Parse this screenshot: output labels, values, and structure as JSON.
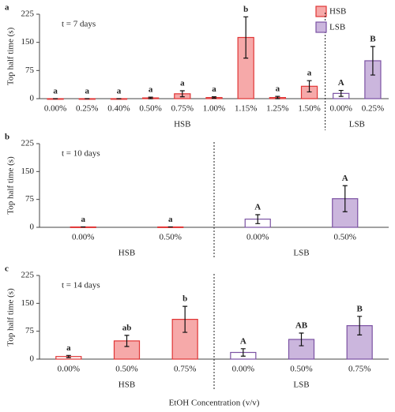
{
  "chart_data": [
    {
      "type": "bar",
      "panel_label": "a",
      "annotation": "t = 7 days",
      "ylabel": "Top half time (s)",
      "ylim": [
        0,
        225
      ],
      "yticks": [
        0,
        75,
        150,
        225
      ],
      "legend": true,
      "legend_position": "top-right",
      "series": [
        {
          "name": "HSB",
          "color": "#e03535",
          "fill": "#f6a9a9",
          "categories": [
            "0.00%",
            "0.25%",
            "0.40%",
            "0.50%",
            "0.75%",
            "1.00%",
            "1.15%",
            "1.25%",
            "1.50%"
          ],
          "values": [
            0,
            0,
            0,
            2,
            13,
            3,
            163,
            3,
            33
          ],
          "errors": [
            0,
            0,
            0,
            2,
            8,
            2,
            55,
            3,
            15
          ],
          "letters": [
            "a",
            "a",
            "a",
            "a",
            "a",
            "a",
            "b",
            "a",
            "a"
          ],
          "bar_fills": [
            "#ffffff",
            "#f6a9a9",
            "#f6a9a9",
            "#f6a9a9",
            "#f6a9a9",
            "#f6a9a9",
            "#f6a9a9",
            "#f6a9a9",
            "#f6a9a9"
          ]
        },
        {
          "name": "LSB",
          "color": "#7b52a3",
          "fill": "#cbb6dd",
          "categories": [
            "0.00%",
            "0.25%"
          ],
          "values": [
            14,
            101
          ],
          "errors": [
            8,
            38
          ],
          "letters": [
            "A",
            "B"
          ],
          "bar_fills": [
            "#ffffff",
            "#cbb6dd"
          ]
        }
      ]
    },
    {
      "type": "bar",
      "panel_label": "b",
      "annotation": "t = 10 days",
      "ylabel": "Top half time (s)",
      "ylim": [
        0,
        225
      ],
      "yticks": [
        0,
        75,
        150,
        225
      ],
      "legend": false,
      "series": [
        {
          "name": "HSB",
          "color": "#e03535",
          "fill": "#f6a9a9",
          "categories": [
            "0.00%",
            "0.50%"
          ],
          "values": [
            1,
            1
          ],
          "errors": [
            0,
            0
          ],
          "letters": [
            "a",
            "a"
          ],
          "bar_fills": [
            "#ffffff",
            "#f6a9a9"
          ]
        },
        {
          "name": "LSB",
          "color": "#7b52a3",
          "fill": "#cbb6dd",
          "categories": [
            "0.00%",
            "0.50%"
          ],
          "values": [
            22,
            77
          ],
          "errors": [
            12,
            35
          ],
          "letters": [
            "A",
            "A"
          ],
          "bar_fills": [
            "#ffffff",
            "#cbb6dd"
          ]
        }
      ]
    },
    {
      "type": "bar",
      "panel_label": "c",
      "annotation": "t = 14 days",
      "ylabel": "Top half time (s)",
      "xlabel": "EtOH Concentration (v/v)",
      "ylim": [
        0,
        225
      ],
      "yticks": [
        0,
        75,
        150,
        225
      ],
      "legend": false,
      "series": [
        {
          "name": "HSB",
          "color": "#e03535",
          "fill": "#f6a9a9",
          "categories": [
            "0.00%",
            "0.50%",
            "0.75%"
          ],
          "values": [
            7,
            49,
            107
          ],
          "errors": [
            3,
            15,
            35
          ],
          "letters": [
            "a",
            "ab",
            "b"
          ],
          "bar_fills": [
            "#ffffff",
            "#f6a9a9",
            "#f6a9a9"
          ]
        },
        {
          "name": "LSB",
          "color": "#7b52a3",
          "fill": "#cbb6dd",
          "categories": [
            "0.00%",
            "0.50%",
            "0.75%"
          ],
          "values": [
            18,
            53,
            90
          ],
          "errors": [
            10,
            17,
            25
          ],
          "letters": [
            "A",
            "AB",
            "B"
          ],
          "bar_fills": [
            "#ffffff",
            "#cbb6dd",
            "#cbb6dd"
          ]
        }
      ]
    }
  ]
}
